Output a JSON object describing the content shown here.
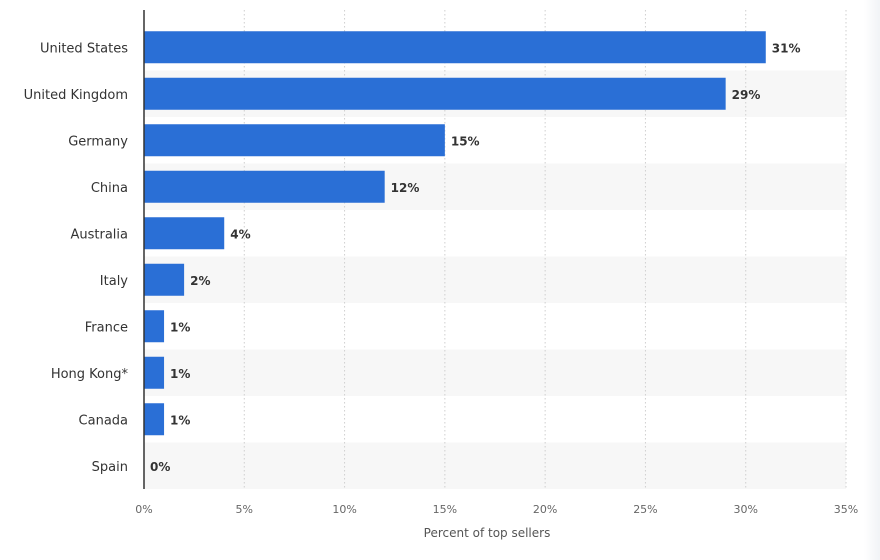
{
  "chart_data": {
    "type": "bar",
    "orientation": "horizontal",
    "categories": [
      "United States",
      "United Kingdom",
      "Germany",
      "China",
      "Australia",
      "Italy",
      "France",
      "Hong Kong*",
      "Canada",
      "Spain"
    ],
    "values": [
      31,
      29,
      15,
      12,
      4,
      2,
      1,
      1,
      1,
      0
    ],
    "value_labels": [
      "31%",
      "29%",
      "15%",
      "12%",
      "4%",
      "2%",
      "1%",
      "1%",
      "1%",
      "0%"
    ],
    "title": "",
    "xlabel": "Percent of top sellers",
    "ylabel": "",
    "xlim": [
      0,
      35
    ],
    "xticks": [
      0,
      5,
      10,
      15,
      20,
      25,
      30,
      35
    ],
    "xtick_labels": [
      "0%",
      "5%",
      "10%",
      "15%",
      "20%",
      "25%",
      "30%",
      "35%"
    ],
    "grid": "vertical dotted",
    "legend": "none",
    "bar_color": "#2a6fd6",
    "stripe_color": "#f7f7f7"
  }
}
